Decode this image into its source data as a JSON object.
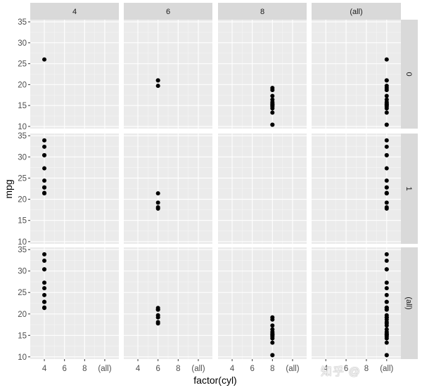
{
  "chart_data": {
    "type": "scatter",
    "layout": "facet_grid",
    "title": "",
    "xlabel": "factor(cyl)",
    "ylabel": "mpg",
    "ylim": [
      10,
      35
    ],
    "y_ticks": [
      10,
      15,
      20,
      25,
      30,
      35
    ],
    "x_ticks": [
      "4",
      "6",
      "8",
      "(all)"
    ],
    "grid": true,
    "col_facets": [
      "4",
      "6",
      "8",
      "(all)"
    ],
    "row_facets": [
      "0",
      "1",
      "(all)"
    ],
    "row_variable_note": "rows facet values as shown on right strips",
    "panels": [
      {
        "row": "0",
        "col": "4",
        "x": "4",
        "values": [
          26.0
        ]
      },
      {
        "row": "0",
        "col": "6",
        "x": "6",
        "values": [
          21.0,
          21.0,
          19.7
        ]
      },
      {
        "row": "0",
        "col": "8",
        "x": "8",
        "values": [
          18.7,
          14.3,
          16.4,
          17.3,
          15.2,
          10.4,
          10.4,
          14.7,
          15.5,
          15.2,
          13.3,
          19.2,
          15.8,
          15.0
        ]
      },
      {
        "row": "0",
        "col": "(all)",
        "x": "(all)",
        "values": [
          26.0,
          21.0,
          21.0,
          19.7,
          18.7,
          14.3,
          16.4,
          17.3,
          15.2,
          10.4,
          10.4,
          14.7,
          15.5,
          15.2,
          13.3,
          19.2,
          15.8,
          15.0
        ]
      },
      {
        "row": "1",
        "col": "4",
        "x": "4",
        "values": [
          22.8,
          24.4,
          22.8,
          32.4,
          30.4,
          33.9,
          21.5,
          27.3,
          30.4,
          21.4
        ]
      },
      {
        "row": "1",
        "col": "6",
        "x": "6",
        "values": [
          21.4,
          18.1,
          19.2,
          17.8
        ]
      },
      {
        "row": "1",
        "col": "8",
        "x": "8",
        "values": []
      },
      {
        "row": "1",
        "col": "(all)",
        "x": "(all)",
        "values": [
          22.8,
          24.4,
          22.8,
          32.4,
          30.4,
          33.9,
          21.5,
          27.3,
          30.4,
          21.4,
          21.4,
          18.1,
          19.2,
          17.8
        ]
      },
      {
        "row": "(all)",
        "col": "4",
        "x": "4",
        "values": [
          26.0,
          22.8,
          24.4,
          22.8,
          32.4,
          30.4,
          33.9,
          21.5,
          27.3,
          30.4,
          21.4
        ]
      },
      {
        "row": "(all)",
        "col": "6",
        "x": "6",
        "values": [
          21.0,
          21.0,
          19.7,
          21.4,
          18.1,
          19.2,
          17.8
        ]
      },
      {
        "row": "(all)",
        "col": "8",
        "x": "8",
        "values": [
          18.7,
          14.3,
          16.4,
          17.3,
          15.2,
          10.4,
          10.4,
          14.7,
          15.5,
          15.2,
          13.3,
          19.2,
          15.8,
          15.0
        ]
      },
      {
        "row": "(all)",
        "col": "(all)",
        "x": "(all)",
        "values": [
          26.0,
          21.0,
          21.0,
          19.7,
          18.7,
          14.3,
          16.4,
          17.3,
          15.2,
          10.4,
          10.4,
          14.7,
          15.5,
          15.2,
          13.3,
          19.2,
          15.8,
          15.0,
          22.8,
          24.4,
          22.8,
          32.4,
          30.4,
          33.9,
          21.5,
          27.3,
          30.4,
          21.4,
          21.4,
          18.1,
          19.2,
          17.8
        ]
      }
    ]
  },
  "colors": {
    "panel_bg": "#ebebeb",
    "strip_bg": "#d9d9d9",
    "grid_major": "#ffffff",
    "grid_minor": "#f5f5f5",
    "point": "#000000",
    "tick_text": "#4d4d4d",
    "strip_text": "#1a1a1a",
    "axis_title": "#000000"
  },
  "watermark": "知乎 @"
}
